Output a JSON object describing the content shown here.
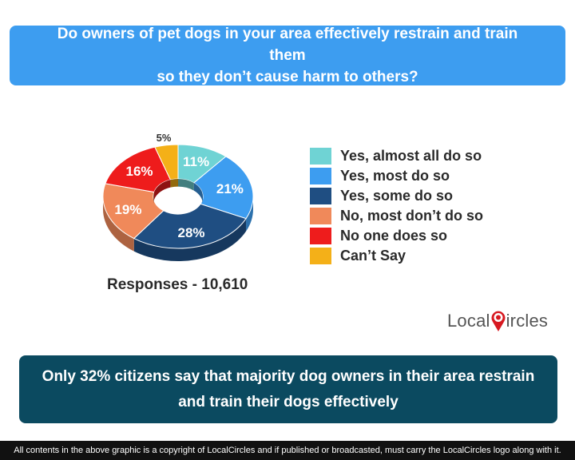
{
  "question": {
    "line1": "Do owners of pet dogs in your area effectively restrain and train them",
    "line2": "so they don’t cause harm to others?"
  },
  "chart_data": {
    "type": "pie",
    "style": "3d-donut",
    "labels": [
      "Yes, almost all do so",
      "Yes, most do so",
      "Yes, some do so",
      "No, most don’t do so",
      "No one does so",
      "Can’t Say"
    ],
    "values": [
      11,
      21,
      28,
      19,
      16,
      5
    ],
    "value_labels": [
      "11%",
      "21%",
      "28%",
      "19%",
      "16%",
      "5%"
    ],
    "colors": [
      "#6fd3d4",
      "#3d9df0",
      "#1f4e82",
      "#f0895a",
      "#ee1c1c",
      "#f4b018"
    ],
    "legend_position": "right"
  },
  "responses_label": "Responses - 10,610",
  "logo": {
    "text_left": "Local",
    "text_right": "ircles"
  },
  "summary": {
    "line1": "Only 32% citizens say that majority dog owners in their area restrain",
    "line2": "and train their dogs effectively"
  },
  "footer": "All contents in the above graphic is a copyright of LocalCircles and if published or broadcasted, must carry the LocalCircles logo along with it."
}
